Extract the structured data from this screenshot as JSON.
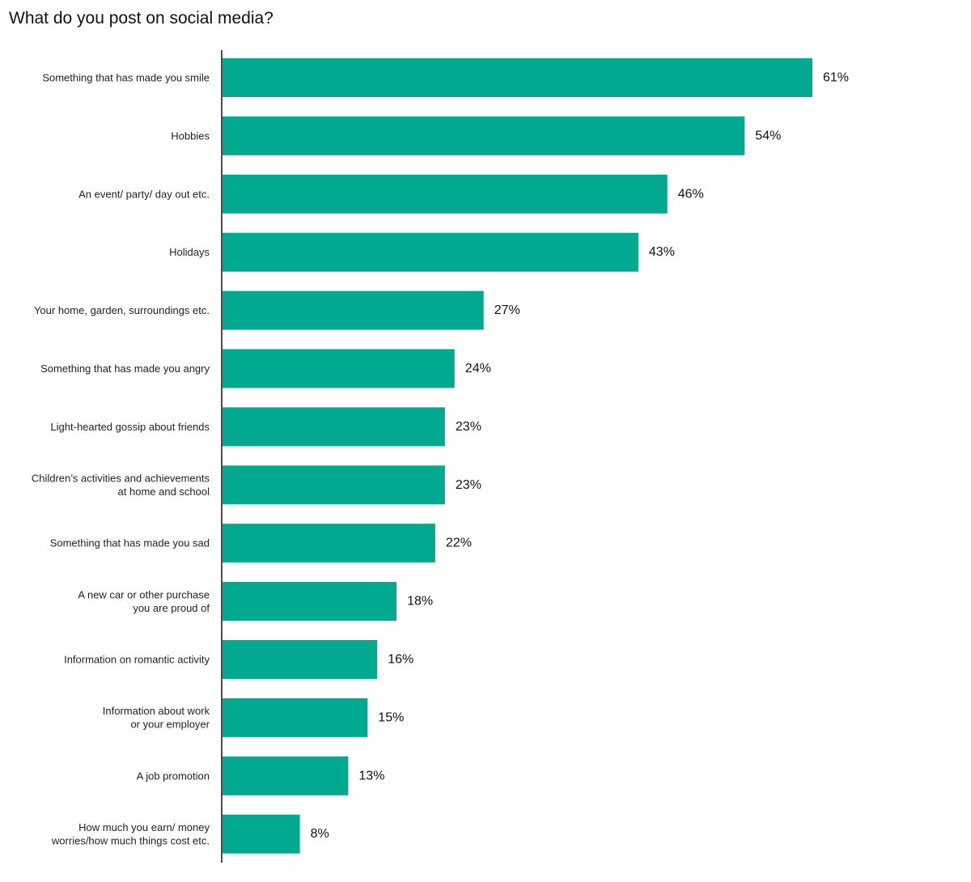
{
  "chart_data": {
    "type": "bar",
    "orientation": "horizontal",
    "title": "What do you post on social media?",
    "xlabel": "",
    "ylabel": "",
    "value_suffix": "%",
    "bar_color": "#00A98F",
    "grid": false,
    "categories": [
      [
        "Something that has made you smile"
      ],
      [
        "Hobbies"
      ],
      [
        "An event/ party/ day out etc."
      ],
      [
        "Holidays"
      ],
      [
        "Your home, garden, surroundings etc."
      ],
      [
        "Something that has made you angry"
      ],
      [
        "Light-hearted gossip about friends"
      ],
      [
        "Children’s activities and achievements",
        "at home and school"
      ],
      [
        "Something that has made you sad"
      ],
      [
        "A new car or other purchase",
        "you are proud of"
      ],
      [
        "Information on romantic activity"
      ],
      [
        "Information about work",
        "or your employer"
      ],
      [
        "A job promotion"
      ],
      [
        "How much you earn/ money",
        "worries/how much things cost etc."
      ]
    ],
    "values": [
      61,
      54,
      46,
      43,
      27,
      24,
      23,
      23,
      22,
      18,
      16,
      15,
      13,
      8
    ],
    "value_labels": [
      "61%",
      "54%",
      "46%",
      "43%",
      "27%",
      "24%",
      "23%",
      "23%",
      "22%",
      "18%",
      "16%",
      "15%",
      "13%",
      "8%"
    ]
  }
}
